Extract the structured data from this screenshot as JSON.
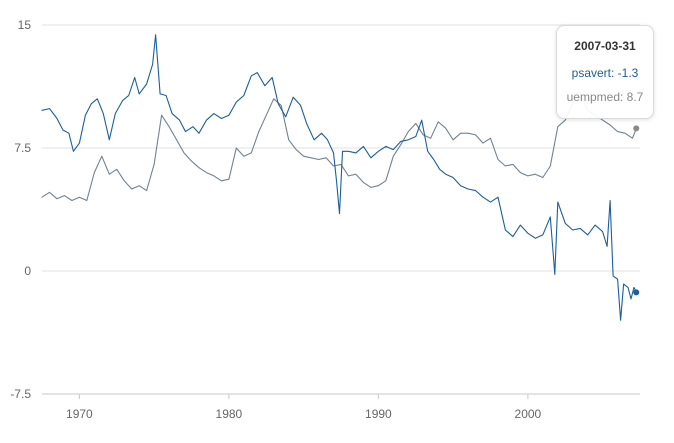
{
  "chart_data": {
    "type": "line",
    "x_ticks": [
      "1970",
      "1980",
      "1990",
      "2000"
    ],
    "y_ticks": [
      "15",
      "7.5",
      "0",
      "-7.5"
    ],
    "xlim": [
      1967.5,
      2007.5
    ],
    "ylim": [
      -7.5,
      15
    ],
    "grid": true,
    "series": [
      {
        "name": "psavert",
        "color": "#1a5f9e",
        "points": [
          [
            1967.5,
            9.8
          ],
          [
            1968.0,
            9.9
          ],
          [
            1968.5,
            9.3
          ],
          [
            1968.9,
            8.6
          ],
          [
            1969.3,
            8.4
          ],
          [
            1969.6,
            7.3
          ],
          [
            1970.0,
            7.8
          ],
          [
            1970.4,
            9.5
          ],
          [
            1970.8,
            10.2
          ],
          [
            1971.2,
            10.5
          ],
          [
            1971.6,
            9.6
          ],
          [
            1972.0,
            8.0
          ],
          [
            1972.4,
            9.6
          ],
          [
            1972.9,
            10.4
          ],
          [
            1973.3,
            10.7
          ],
          [
            1973.7,
            11.8
          ],
          [
            1974.0,
            10.8
          ],
          [
            1974.5,
            11.4
          ],
          [
            1974.9,
            12.6
          ],
          [
            1975.1,
            14.4
          ],
          [
            1975.4,
            10.8
          ],
          [
            1975.8,
            10.7
          ],
          [
            1976.2,
            9.6
          ],
          [
            1976.7,
            9.2
          ],
          [
            1977.1,
            8.5
          ],
          [
            1977.6,
            8.8
          ],
          [
            1978.0,
            8.4
          ],
          [
            1978.5,
            9.2
          ],
          [
            1979.0,
            9.6
          ],
          [
            1979.5,
            9.3
          ],
          [
            1980.0,
            9.5
          ],
          [
            1980.5,
            10.3
          ],
          [
            1981.0,
            10.7
          ],
          [
            1981.5,
            11.9
          ],
          [
            1981.9,
            12.1
          ],
          [
            1982.4,
            11.3
          ],
          [
            1982.9,
            11.8
          ],
          [
            1983.3,
            10.2
          ],
          [
            1983.8,
            9.4
          ],
          [
            1984.3,
            10.6
          ],
          [
            1984.8,
            10.1
          ],
          [
            1985.2,
            9.0
          ],
          [
            1985.7,
            8.0
          ],
          [
            1986.2,
            8.4
          ],
          [
            1986.6,
            8.0
          ],
          [
            1987.0,
            7.2
          ],
          [
            1987.2,
            5.5
          ],
          [
            1987.4,
            3.5
          ],
          [
            1987.6,
            7.3
          ],
          [
            1988.0,
            7.3
          ],
          [
            1988.5,
            7.2
          ],
          [
            1989.0,
            7.6
          ],
          [
            1989.5,
            6.9
          ],
          [
            1990.0,
            7.3
          ],
          [
            1990.5,
            7.6
          ],
          [
            1991.0,
            7.4
          ],
          [
            1991.5,
            7.9
          ],
          [
            1992.0,
            8.0
          ],
          [
            1992.5,
            8.2
          ],
          [
            1992.9,
            9.2
          ],
          [
            1993.3,
            7.3
          ],
          [
            1993.7,
            6.8
          ],
          [
            1994.1,
            6.2
          ],
          [
            1994.5,
            5.9
          ],
          [
            1995.0,
            5.7
          ],
          [
            1995.5,
            5.2
          ],
          [
            1996.0,
            5.0
          ],
          [
            1996.5,
            4.9
          ],
          [
            1997.0,
            4.5
          ],
          [
            1997.5,
            4.2
          ],
          [
            1998.0,
            4.5
          ],
          [
            1998.5,
            2.5
          ],
          [
            1999.0,
            2.1
          ],
          [
            1999.5,
            2.8
          ],
          [
            2000.0,
            2.3
          ],
          [
            2000.5,
            2.0
          ],
          [
            2001.0,
            2.2
          ],
          [
            2001.5,
            3.3
          ],
          [
            2001.8,
            -0.2
          ],
          [
            2002.0,
            4.2
          ],
          [
            2002.5,
            2.9
          ],
          [
            2003.0,
            2.5
          ],
          [
            2003.5,
            2.6
          ],
          [
            2004.0,
            2.2
          ],
          [
            2004.5,
            2.8
          ],
          [
            2005.0,
            2.4
          ],
          [
            2005.3,
            1.5
          ],
          [
            2005.5,
            4.3
          ],
          [
            2005.7,
            -0.3
          ],
          [
            2006.0,
            -0.5
          ],
          [
            2006.2,
            -3.0
          ],
          [
            2006.4,
            -0.8
          ],
          [
            2006.7,
            -1.0
          ],
          [
            2006.9,
            -1.7
          ],
          [
            2007.1,
            -1.0
          ],
          [
            2007.25,
            -1.3
          ]
        ]
      },
      {
        "name": "uempmed",
        "color": "#6f8296",
        "points": [
          [
            1967.5,
            4.5
          ],
          [
            1968.0,
            4.8
          ],
          [
            1968.5,
            4.4
          ],
          [
            1969.0,
            4.6
          ],
          [
            1969.5,
            4.3
          ],
          [
            1970.0,
            4.5
          ],
          [
            1970.5,
            4.3
          ],
          [
            1971.0,
            6.0
          ],
          [
            1971.5,
            7.0
          ],
          [
            1972.0,
            5.9
          ],
          [
            1972.5,
            6.2
          ],
          [
            1973.0,
            5.5
          ],
          [
            1973.5,
            5.0
          ],
          [
            1974.0,
            5.2
          ],
          [
            1974.5,
            4.9
          ],
          [
            1975.0,
            6.5
          ],
          [
            1975.5,
            9.5
          ],
          [
            1976.0,
            8.8
          ],
          [
            1976.5,
            8.0
          ],
          [
            1977.0,
            7.2
          ],
          [
            1977.5,
            6.7
          ],
          [
            1978.0,
            6.3
          ],
          [
            1978.5,
            6.0
          ],
          [
            1979.0,
            5.8
          ],
          [
            1979.5,
            5.5
          ],
          [
            1980.0,
            5.6
          ],
          [
            1980.5,
            7.5
          ],
          [
            1981.0,
            7.0
          ],
          [
            1981.5,
            7.2
          ],
          [
            1982.0,
            8.5
          ],
          [
            1982.5,
            9.5
          ],
          [
            1983.0,
            10.5
          ],
          [
            1983.5,
            10.1
          ],
          [
            1984.0,
            8.0
          ],
          [
            1984.5,
            7.4
          ],
          [
            1985.0,
            7.0
          ],
          [
            1985.5,
            6.9
          ],
          [
            1986.0,
            6.8
          ],
          [
            1986.5,
            6.9
          ],
          [
            1987.0,
            6.4
          ],
          [
            1987.5,
            6.5
          ],
          [
            1988.0,
            5.8
          ],
          [
            1988.5,
            5.9
          ],
          [
            1989.0,
            5.4
          ],
          [
            1989.5,
            5.1
          ],
          [
            1990.0,
            5.2
          ],
          [
            1990.5,
            5.5
          ],
          [
            1991.0,
            7.0
          ],
          [
            1991.5,
            7.7
          ],
          [
            1992.0,
            8.5
          ],
          [
            1992.5,
            9.0
          ],
          [
            1993.0,
            8.3
          ],
          [
            1993.5,
            8.1
          ],
          [
            1994.0,
            9.1
          ],
          [
            1994.5,
            8.7
          ],
          [
            1995.0,
            8.0
          ],
          [
            1995.5,
            8.4
          ],
          [
            1996.0,
            8.4
          ],
          [
            1996.5,
            8.3
          ],
          [
            1997.0,
            7.8
          ],
          [
            1997.5,
            8.1
          ],
          [
            1998.0,
            6.8
          ],
          [
            1998.5,
            6.4
          ],
          [
            1999.0,
            6.5
          ],
          [
            1999.5,
            6.0
          ],
          [
            2000.0,
            5.8
          ],
          [
            2000.5,
            5.9
          ],
          [
            2001.0,
            5.7
          ],
          [
            2001.5,
            6.4
          ],
          [
            2002.0,
            8.8
          ],
          [
            2002.5,
            9.2
          ],
          [
            2003.0,
            10.2
          ],
          [
            2003.5,
            10.8
          ],
          [
            2004.0,
            9.8
          ],
          [
            2004.5,
            9.5
          ],
          [
            2005.0,
            9.2
          ],
          [
            2005.5,
            8.9
          ],
          [
            2006.0,
            8.5
          ],
          [
            2006.5,
            8.4
          ],
          [
            2007.0,
            8.1
          ],
          [
            2007.25,
            8.7
          ]
        ]
      }
    ]
  },
  "tooltip": {
    "date": "2007-03-31",
    "rows": [
      {
        "label": "psavert",
        "value": "-1.3",
        "color": "#1a5f9e"
      },
      {
        "label": "uempmed",
        "value": "8.7",
        "color": "#888888"
      }
    ]
  }
}
